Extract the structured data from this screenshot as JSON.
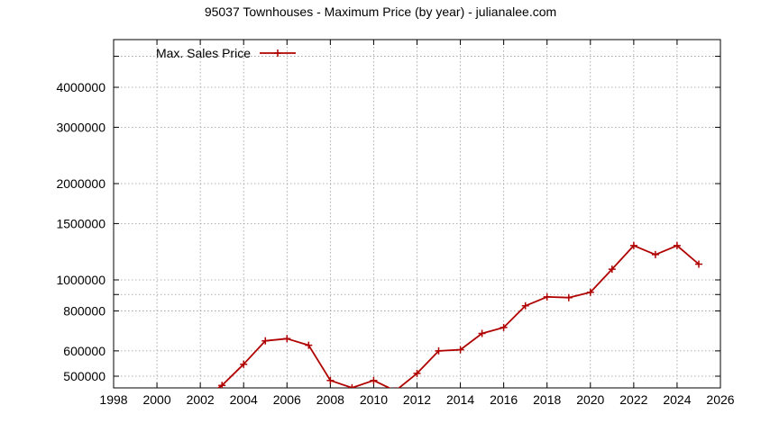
{
  "chart_data": {
    "type": "line",
    "title": "95037 Townhouses - Maximum Price (by year) - julianalee.com",
    "xlabel": "",
    "ylabel": "",
    "x_ticks": [
      "1998",
      "2000",
      "2002",
      "2004",
      "2006",
      "2008",
      "2010",
      "2012",
      "2014",
      "2016",
      "2018",
      "2020",
      "2022",
      "2024",
      "2026"
    ],
    "y_ticks": [
      {
        "value": 500000,
        "label": "500000"
      },
      {
        "value": 600000,
        "label": "600000"
      },
      {
        "value": 800000,
        "label": "800000"
      },
      {
        "value": 1000000,
        "label": "1000000"
      },
      {
        "value": 1500000,
        "label": "1500000"
      },
      {
        "value": 2000000,
        "label": "2000000"
      },
      {
        "value": 3000000,
        "label": "3000000"
      },
      {
        "value": 4000000,
        "label": "4000000"
      }
    ],
    "extra_grid_y": [
      900000,
      5000000
    ],
    "xlim": [
      1998,
      2026
    ],
    "ylim": [
      470000,
      5300000
    ],
    "y_scale": "log",
    "grid": true,
    "legend_position": "top-left",
    "series": [
      {
        "name": "Max. Sales Price",
        "color": "#b00000",
        "x": [
          2002,
          2003,
          2004,
          2005,
          2006,
          2007,
          2008,
          2009,
          2010,
          2011,
          2012,
          2013,
          2014,
          2015,
          2016,
          2017,
          2018,
          2019,
          2020,
          2021,
          2022,
          2023,
          2024,
          2025
        ],
        "y": [
          420000,
          468000,
          545000,
          645000,
          655000,
          625000,
          485000,
          460000,
          485000,
          450000,
          510000,
          600000,
          605000,
          680000,
          710000,
          830000,
          885000,
          880000,
          915000,
          1080000,
          1280000,
          1200000,
          1280000,
          1120000
        ]
      }
    ]
  }
}
